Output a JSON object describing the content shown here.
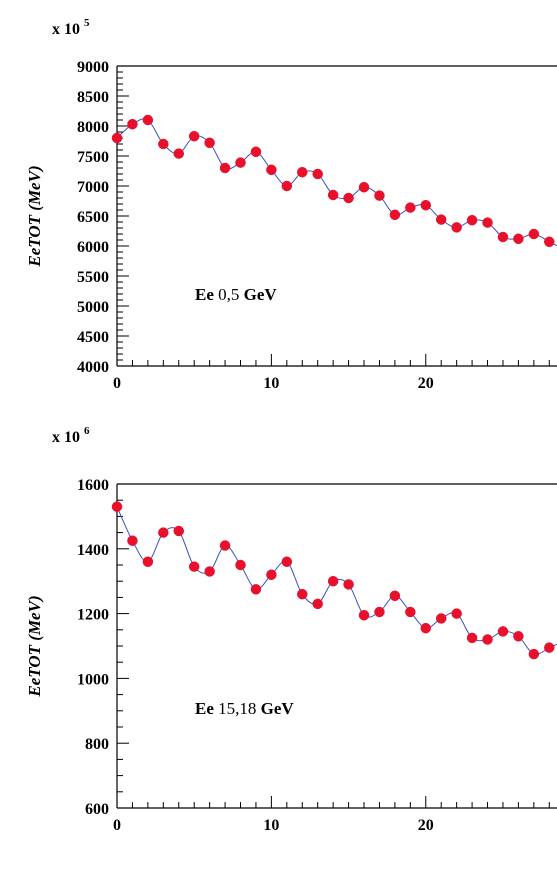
{
  "chart_data": [
    {
      "type": "line",
      "exponent_base": "x 10",
      "exponent_power": "5",
      "ylabel": "EeTOT (MeV)",
      "xlabel": "",
      "xlim": [
        0,
        28.5
      ],
      "ylim": [
        4000,
        9000
      ],
      "x_ticks": [
        0,
        10,
        20
      ],
      "y_ticks": [
        4000,
        4500,
        5000,
        5500,
        6000,
        6500,
        7000,
        7500,
        8000,
        8500,
        9000
      ],
      "annotation": {
        "bold": "Ee",
        "value": "0,5",
        "unit": "GeV"
      },
      "series": [
        {
          "x": [
            0,
            1,
            2,
            3,
            4,
            5,
            6,
            7,
            8,
            9,
            10,
            11,
            12,
            13,
            14,
            15,
            16,
            17,
            18,
            19,
            20,
            21,
            22,
            23,
            24,
            25,
            26,
            27,
            28
          ],
          "values": [
            7800,
            8030,
            8100,
            7700,
            7540,
            7830,
            7720,
            7300,
            7390,
            7570,
            7270,
            7000,
            7230,
            7200,
            6850,
            6800,
            6980,
            6840,
            6520,
            6640,
            6680,
            6440,
            6310,
            6430,
            6390,
            6150,
            6120,
            6200,
            6070
          ]
        }
      ],
      "colors": {
        "marker": "#e8102a",
        "line": "#3a50c8"
      },
      "grid": false
    },
    {
      "type": "line",
      "exponent_base": "x 10",
      "exponent_power": "6",
      "ylabel": "EeTOT (MeV)",
      "xlabel": "",
      "xlim": [
        0,
        28.5
      ],
      "ylim": [
        600,
        1600
      ],
      "x_ticks": [
        0,
        10,
        20
      ],
      "y_ticks": [
        600,
        800,
        1000,
        1200,
        1400,
        1600
      ],
      "annotation": {
        "bold": "Ee",
        "value": "15,18",
        "unit": "GeV"
      },
      "series": [
        {
          "x": [
            0,
            1,
            2,
            3,
            4,
            5,
            6,
            7,
            8,
            9,
            10,
            11,
            12,
            13,
            14,
            15,
            16,
            17,
            18,
            19,
            20,
            21,
            22,
            23,
            24,
            25,
            26,
            27,
            28
          ],
          "values": [
            1530,
            1425,
            1360,
            1450,
            1455,
            1345,
            1330,
            1410,
            1350,
            1275,
            1320,
            1360,
            1260,
            1230,
            1300,
            1290,
            1195,
            1205,
            1255,
            1205,
            1155,
            1185,
            1200,
            1125,
            1120,
            1145,
            1130,
            1075,
            1095
          ]
        }
      ],
      "colors": {
        "marker": "#e8102a",
        "line": "#3a50c8"
      },
      "grid": false
    }
  ]
}
